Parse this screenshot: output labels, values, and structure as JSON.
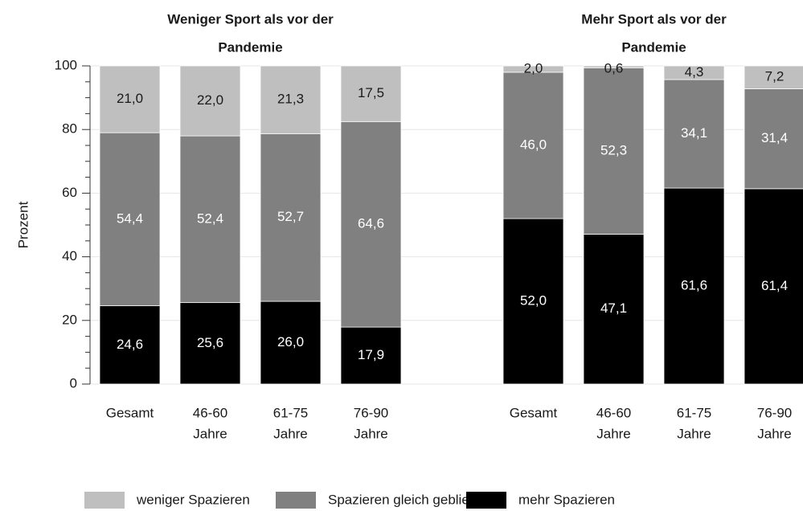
{
  "chart_data": {
    "type": "stacked_bar",
    "y_label": "Prozent",
    "ylim": [
      0,
      100
    ],
    "yticks": [
      0,
      20,
      40,
      60,
      80,
      100
    ],
    "minor_yticks": [
      5,
      10,
      15,
      25,
      30,
      35,
      45,
      50,
      55,
      65,
      70,
      75,
      85,
      90,
      95
    ],
    "grid": true,
    "legend": "bottom",
    "series": [
      {
        "name": "weniger Spazieren",
        "color": "#bfbfbf",
        "label_color": "#1a1a1a"
      },
      {
        "name": "Spazieren gleich geblieben",
        "color": "#808080",
        "label_color": "#ffffff"
      },
      {
        "name": "mehr Spazieren",
        "color": "#000000",
        "label_color": "#ffffff"
      }
    ],
    "panels": [
      {
        "title": [
          "Weniger Sport als vor der",
          "Pandemie"
        ],
        "categories": [
          [
            "Gesamt"
          ],
          [
            "46-60",
            "Jahre"
          ],
          [
            "61-75",
            "Jahre"
          ],
          [
            "76-90",
            "Jahre"
          ]
        ],
        "values": [
          [
            21.0,
            22.0,
            21.3,
            17.5
          ],
          [
            54.4,
            52.4,
            52.7,
            64.6
          ],
          [
            24.6,
            25.6,
            26.0,
            17.9
          ]
        ],
        "value_labels": [
          [
            "21,0",
            "22,0",
            "21,3",
            "17,5"
          ],
          [
            "54,4",
            "52,4",
            "52,7",
            "64,6"
          ],
          [
            "24,6",
            "25,6",
            "26,0",
            "17,9"
          ]
        ]
      },
      {
        "title": [
          "Mehr Sport als vor der",
          "Pandemie"
        ],
        "categories": [
          [
            "Gesamt"
          ],
          [
            "46-60",
            "Jahre"
          ],
          [
            "61-75",
            "Jahre"
          ],
          [
            "76-90",
            "Jahre"
          ]
        ],
        "values": [
          [
            2.0,
            0.6,
            4.3,
            7.2
          ],
          [
            46.0,
            52.3,
            34.1,
            31.4
          ],
          [
            52.0,
            47.1,
            61.6,
            61.4
          ]
        ],
        "value_labels": [
          [
            "2,0",
            "0,6",
            "4,3",
            "7,2"
          ],
          [
            "46,0",
            "52,3",
            "34,1",
            "31,4"
          ],
          [
            "52,0",
            "47,1",
            "61,6",
            "61,4"
          ]
        ]
      }
    ]
  }
}
